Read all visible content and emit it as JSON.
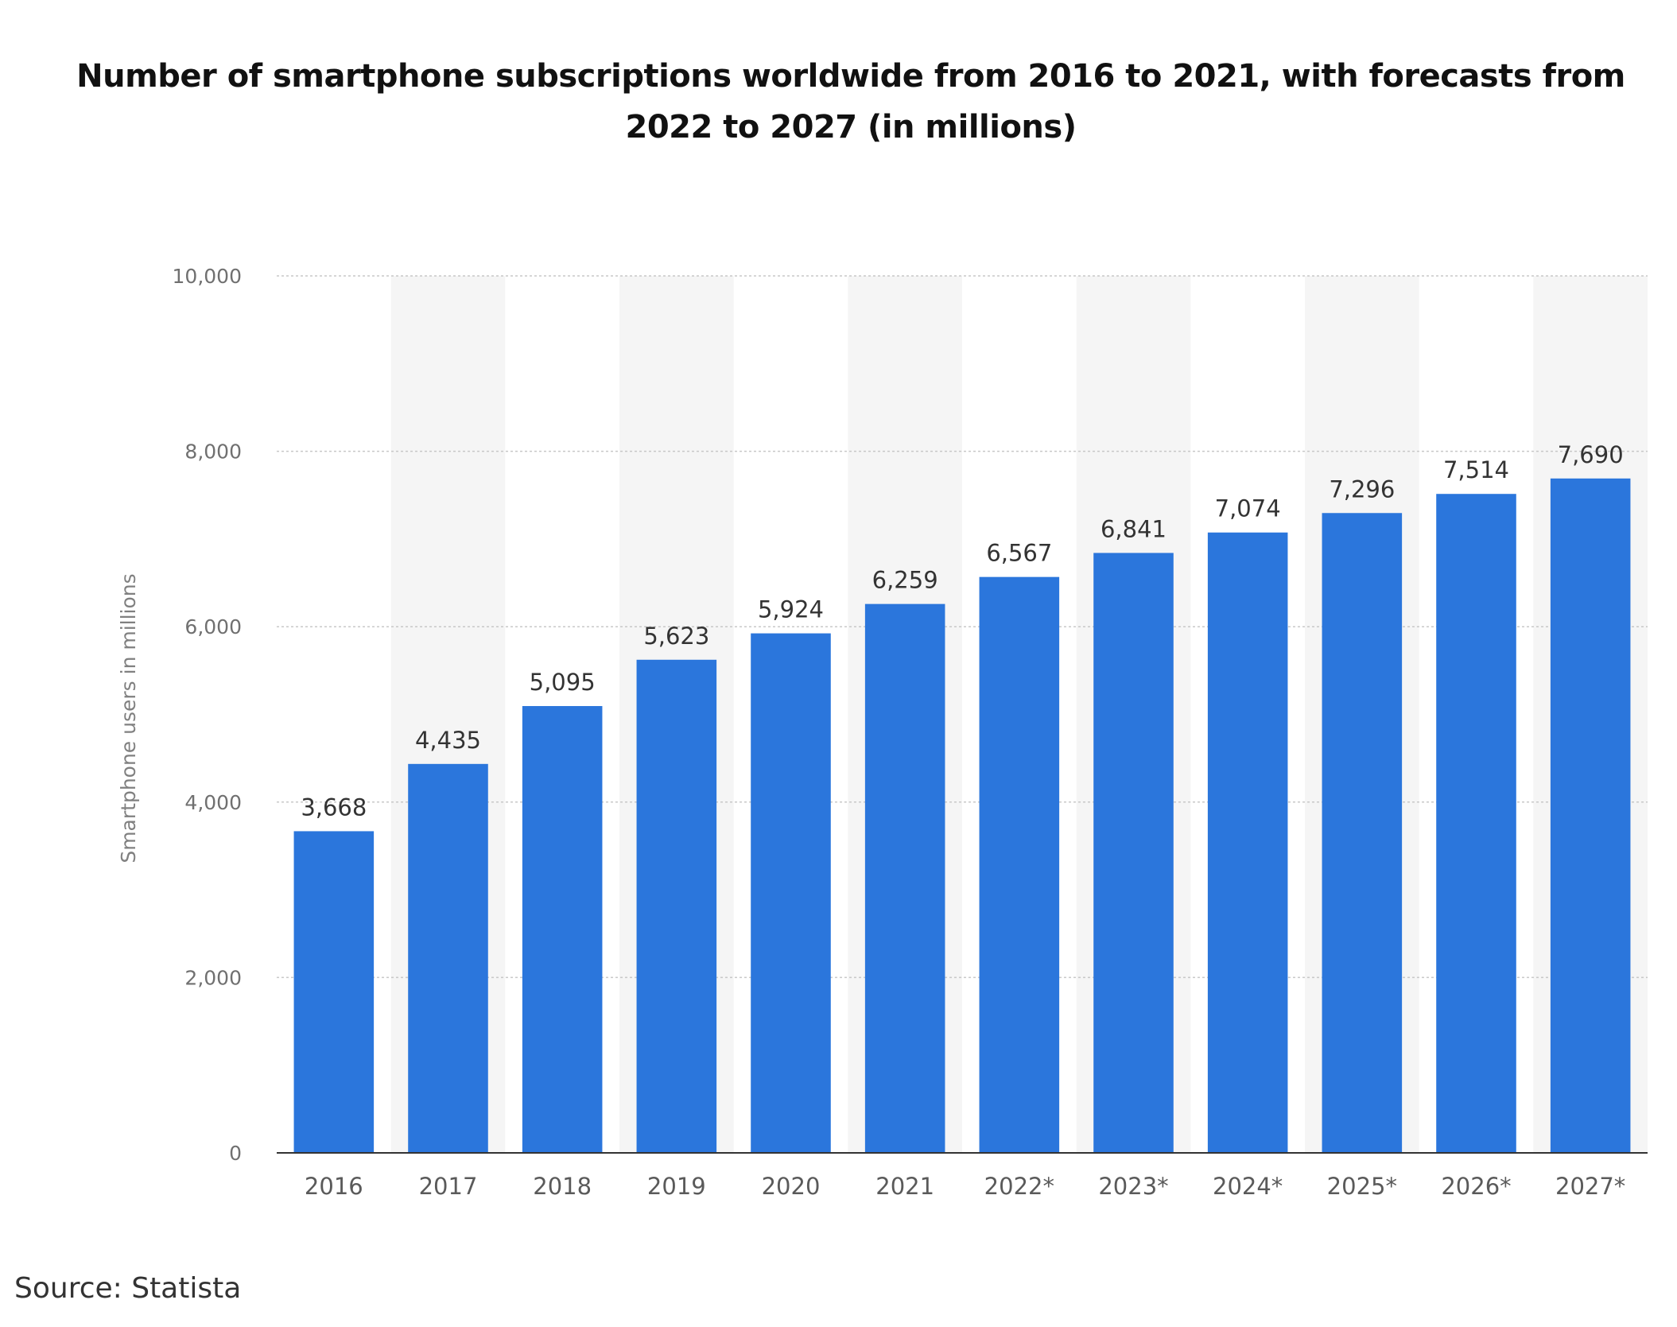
{
  "chart_data": {
    "type": "bar",
    "title": "Number of smartphone subscriptions worldwide from 2016 to 2021, with forecasts from 2022 to 2027 (in millions)",
    "xlabel": "",
    "ylabel": "Smartphone users in millions",
    "categories": [
      "2016",
      "2017",
      "2018",
      "2019",
      "2020",
      "2021",
      "2022*",
      "2023*",
      "2024*",
      "2025*",
      "2026*",
      "2027*"
    ],
    "values": [
      3668,
      4435,
      5095,
      5623,
      5924,
      6259,
      6567,
      6841,
      7074,
      7296,
      7514,
      7690
    ],
    "value_labels": [
      "3,668",
      "4,435",
      "5,095",
      "5,623",
      "5,924",
      "6,259",
      "6,567",
      "6,841",
      "7,074",
      "7,296",
      "7,514",
      "7,690"
    ],
    "ylim": [
      0,
      10000
    ],
    "yticks": [
      0,
      2000,
      4000,
      6000,
      8000,
      10000
    ],
    "ytick_labels": [
      "0",
      "2,000",
      "4,000",
      "6,000",
      "8,000",
      "10,000"
    ],
    "grid": true,
    "bar_color": "#2b76dc",
    "alt_band_color": "#f5f5f5",
    "grid_color": "#c8c8c8"
  },
  "source": "Source: Statista"
}
